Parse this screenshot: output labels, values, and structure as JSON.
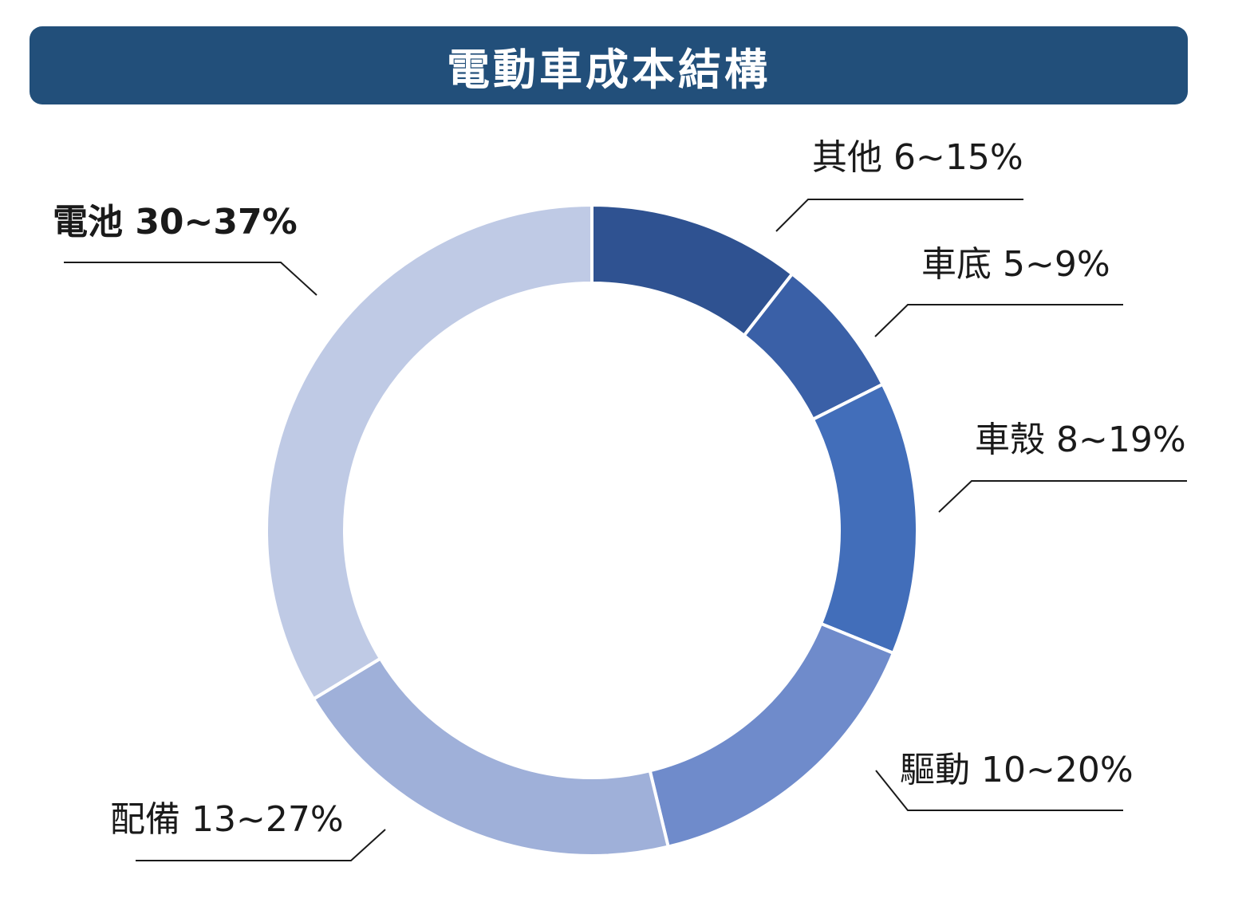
{
  "chart_data": {
    "type": "pie",
    "title": "電動車成本結構",
    "slices": [
      {
        "label": "其他 6~15%",
        "value": 10.5,
        "color": "#2f5291"
      },
      {
        "label": "車底 5~9%",
        "value": 7,
        "color": "#3a60a7"
      },
      {
        "label": "車殼 8~19%",
        "value": 13.5,
        "color": "#426eba"
      },
      {
        "label": "驅動 10~20%",
        "value": 15,
        "color": "#6f8bcb"
      },
      {
        "label": "配備 13~27%",
        "value": 20,
        "color": "#9fb0d9"
      },
      {
        "label": "電池 30~37%",
        "value": 33.5,
        "color": "#bfcae5",
        "bold": true
      }
    ]
  }
}
